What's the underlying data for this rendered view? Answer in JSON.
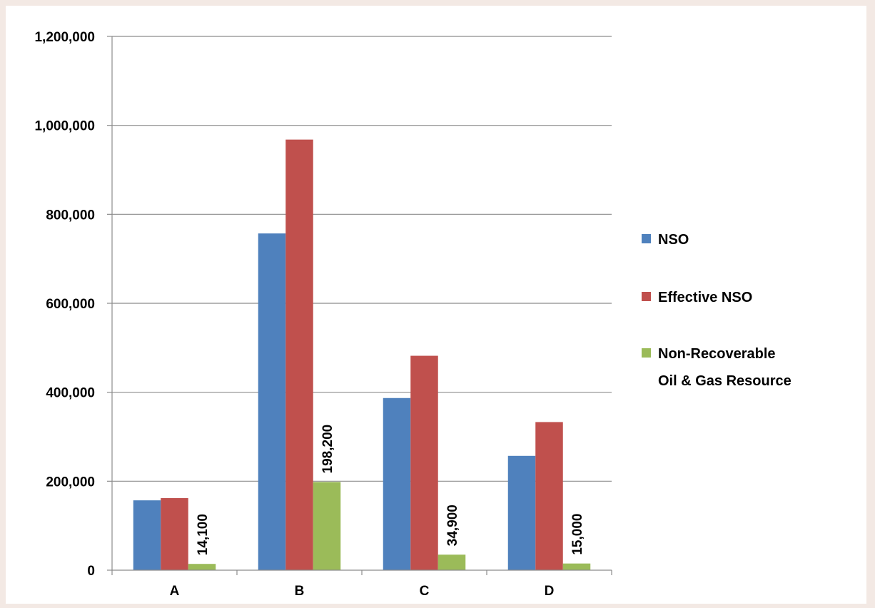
{
  "chart_data": {
    "type": "bar",
    "title": "",
    "xlabel": "",
    "ylabel": "",
    "categories": [
      "A",
      "B",
      "C",
      "D"
    ],
    "series": [
      {
        "name": "NSO",
        "color": "#4f81bd",
        "values": [
          157000,
          757000,
          387000,
          257000
        ]
      },
      {
        "name": "Effective NSO",
        "color": "#c0504d",
        "values": [
          162000,
          968000,
          482000,
          333000
        ]
      },
      {
        "name_lines": [
          "Non-Recoverable",
          "Oil & Gas Resource"
        ],
        "color": "#9bbb59",
        "values": [
          14100,
          198200,
          34900,
          15000
        ],
        "data_labels": [
          "14,100",
          "198,200",
          "34,900",
          "15,000"
        ]
      }
    ],
    "ylim": [
      0,
      1200000
    ],
    "yticks": [
      0,
      200000,
      400000,
      600000,
      800000,
      1000000,
      1200000
    ],
    "ytick_labels": [
      "0",
      "200,000",
      "400,000",
      "600,000",
      "800,000",
      "1,000,000",
      "1,200,000"
    ],
    "grid": true,
    "legend_position": "right"
  }
}
